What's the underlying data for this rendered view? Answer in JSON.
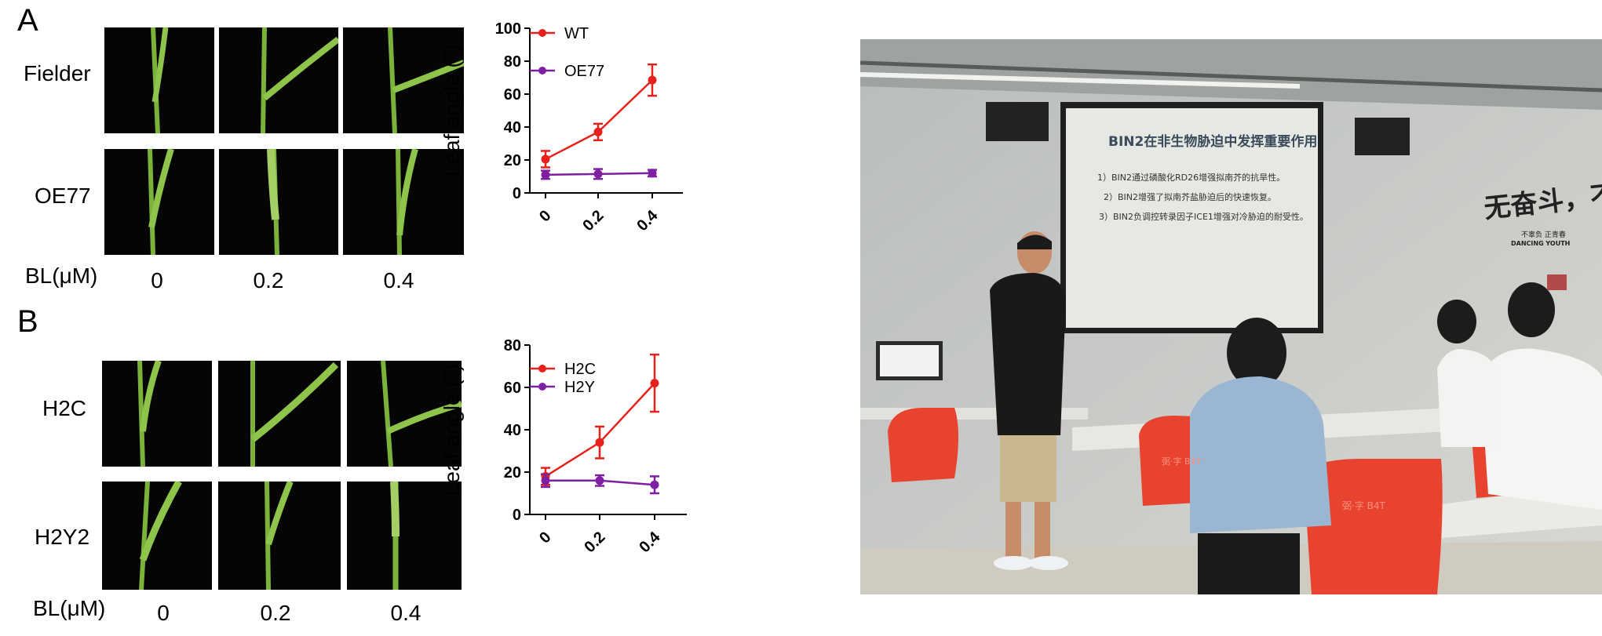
{
  "panel_a": {
    "letter": "A",
    "rows": [
      "Fielder",
      "OE77"
    ],
    "bl_label": "BL(μM)",
    "doses": [
      "0",
      "0.2",
      "0.4"
    ]
  },
  "panel_b": {
    "letter": "B",
    "rows": [
      "H2C",
      "H2Y2"
    ],
    "bl_label": "BL(μM)",
    "doses": [
      "0",
      "0.2",
      "0.4"
    ]
  },
  "chart_data": [
    {
      "type": "line",
      "ylabel": "Leaf angle (°)",
      "categories": [
        "0",
        "0.2",
        "0.4"
      ],
      "ylim": [
        0,
        100
      ],
      "yticks": [
        "0",
        "20",
        "40",
        "60",
        "80",
        "100"
      ],
      "legend_position": "top-left",
      "series": [
        {
          "name": "WT",
          "color": "#e8201b",
          "values": [
            20.5,
            37,
            68.5
          ],
          "errors": [
            5,
            5,
            9.5
          ]
        },
        {
          "name": "OE77",
          "color": "#7f1fa1",
          "values": [
            11,
            11.5,
            12
          ],
          "errors": [
            2.5,
            3,
            2
          ]
        }
      ]
    },
    {
      "type": "line",
      "ylabel": "Leaf angle (°)",
      "categories": [
        "0",
        "0.2",
        "0.4"
      ],
      "ylim": [
        0,
        80
      ],
      "yticks": [
        "0",
        "20",
        "40",
        "60",
        "80"
      ],
      "legend_position": "top-left",
      "series": [
        {
          "name": "H2C",
          "color": "#e8201b",
          "values": [
            18,
            34,
            62
          ],
          "errors": [
            4,
            7.5,
            13.5
          ]
        },
        {
          "name": "H2Y",
          "color": "#7f1fa1",
          "values": [
            16,
            16,
            14
          ],
          "errors": [
            3,
            2.5,
            4
          ]
        }
      ]
    }
  ],
  "photo": {
    "slide_title": "BIN2在非生物胁迫中发挥重要作用",
    "slide_lines": [
      "1）BIN2通过磷酸化RD26增强拟南芥的抗旱性。",
      "2）BIN2增强了拟南芥盐胁迫后的快速恢复。",
      "3）BIN2负调控转录因子ICE1增强对冷胁迫的耐受性。"
    ],
    "wall_slogan": "无奋斗，不青",
    "wall_small_1": "不辜负 正青春",
    "wall_small_2": "DANCING YOUTH",
    "chair_mark_1": "弼·字 B4T",
    "chair_mark_2": "弼·字 B4T"
  }
}
